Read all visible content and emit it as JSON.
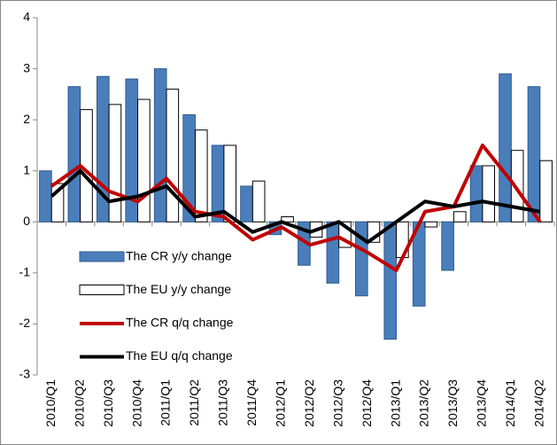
{
  "chart_data": {
    "type": "bar_line",
    "categories": [
      "2010/Q1",
      "2010/Q2",
      "2010/Q3",
      "2010/Q4",
      "2011/Q1",
      "2011/Q2",
      "2011/Q3",
      "2011/Q4",
      "2012/Q1",
      "2012/Q2",
      "2012/Q3",
      "2012/Q4",
      "2013/Q1",
      "2013/Q2",
      "2013/Q3",
      "2013/Q4",
      "2014/Q1",
      "2014/Q2"
    ],
    "series": [
      {
        "name": "The CR y/y change",
        "kind": "bar",
        "color": "#4a7ebb",
        "values": [
          1.0,
          2.65,
          2.85,
          2.8,
          3.0,
          2.1,
          1.5,
          0.7,
          -0.25,
          -0.85,
          -1.2,
          -1.45,
          -2.3,
          -1.65,
          -0.95,
          1.1,
          2.9,
          2.65
        ]
      },
      {
        "name": "The EU y/y change",
        "kind": "bar",
        "color": "#ffffff",
        "values": [
          0.75,
          2.2,
          2.3,
          2.4,
          2.6,
          1.8,
          1.5,
          0.8,
          0.1,
          -0.3,
          -0.5,
          -0.4,
          -0.7,
          -0.1,
          0.2,
          1.1,
          1.4,
          1.2
        ]
      },
      {
        "name": "The CR q/q change",
        "kind": "line",
        "color": "#c00000",
        "values": [
          0.7,
          1.1,
          0.6,
          0.4,
          0.85,
          0.2,
          0.1,
          -0.35,
          -0.1,
          -0.45,
          -0.3,
          -0.6,
          -0.95,
          0.2,
          0.3,
          1.5,
          0.8,
          0.0
        ]
      },
      {
        "name": "The EU q/q change",
        "kind": "line",
        "color": "#000000",
        "values": [
          0.5,
          1.0,
          0.4,
          0.5,
          0.7,
          0.1,
          0.2,
          -0.2,
          0.0,
          -0.2,
          0.0,
          -0.4,
          0.0,
          0.4,
          0.3,
          0.4,
          0.3,
          0.2
        ]
      }
    ],
    "ylim": [
      -3,
      4
    ],
    "yticks": [
      -3,
      -2,
      -1,
      0,
      1,
      2,
      3,
      4
    ],
    "legend": "lower left"
  }
}
